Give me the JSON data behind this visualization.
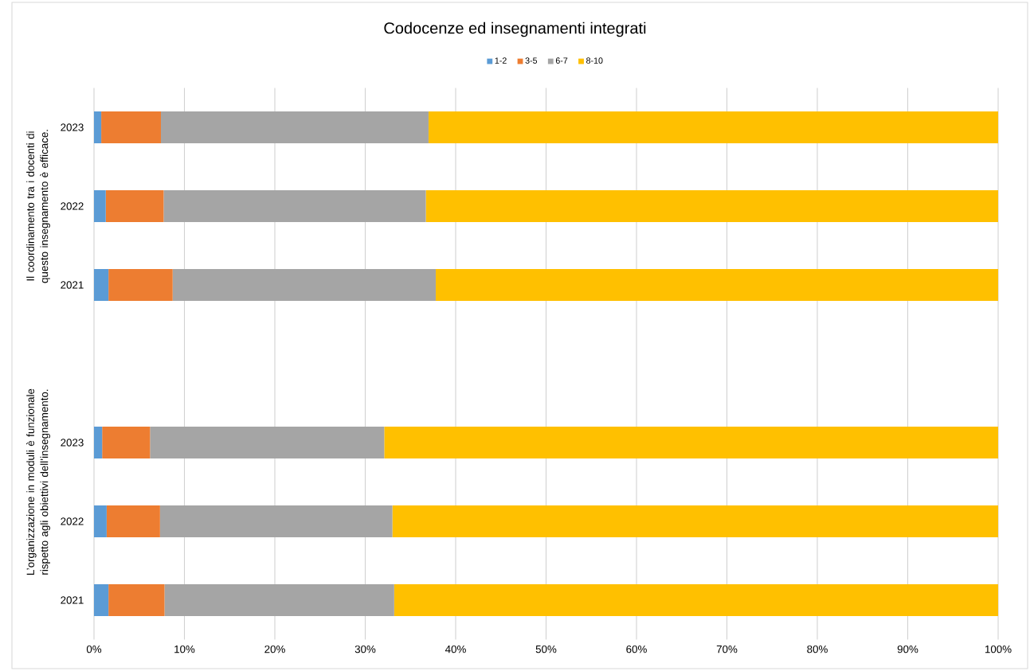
{
  "chart_data": {
    "type": "bar",
    "orientation": "horizontal",
    "stacked": true,
    "title": "Codocenze ed insegnamenti integrati",
    "categories": [
      "2023",
      "2022",
      "2021",
      null,
      "2023",
      "2022",
      "2021"
    ],
    "series": [
      {
        "name": "1-2",
        "color": "#5b9bd5",
        "values": [
          0.8,
          1.3,
          1.6,
          null,
          0.9,
          1.4,
          1.6
        ]
      },
      {
        "name": "3-5",
        "color": "#ed7d31",
        "values": [
          6.6,
          6.4,
          7.1,
          null,
          5.3,
          5.9,
          6.2
        ]
      },
      {
        "name": "6-7",
        "color": "#a5a5a5",
        "values": [
          29.6,
          29.0,
          29.1,
          null,
          25.9,
          25.7,
          25.4
        ]
      },
      {
        "name": "8-10",
        "color": "#ffc000",
        "values": [
          63.0,
          63.3,
          62.2,
          null,
          67.9,
          67.0,
          66.8
        ]
      }
    ],
    "xlim": [
      0,
      100
    ],
    "xticks": [
      {
        "value": 0,
        "label": "0%"
      },
      {
        "value": 10,
        "label": "10%"
      },
      {
        "value": 20,
        "label": "20%"
      },
      {
        "value": 30,
        "label": "30%"
      },
      {
        "value": 40,
        "label": "40%"
      },
      {
        "value": 50,
        "label": "50%"
      },
      {
        "value": 60,
        "label": "60%"
      },
      {
        "value": 70,
        "label": "70%"
      },
      {
        "value": 80,
        "label": "80%"
      },
      {
        "value": 90,
        "label": "90%"
      },
      {
        "value": 100,
        "label": "100%"
      }
    ],
    "grid": "x",
    "legend": "top",
    "annotations": [
      "Il coordinamento tra i docenti di questo insegnamento è efficace.",
      "L’organizzazione in moduli è funzionale rispetto agli obiettivi dell’insegnamento."
    ]
  }
}
